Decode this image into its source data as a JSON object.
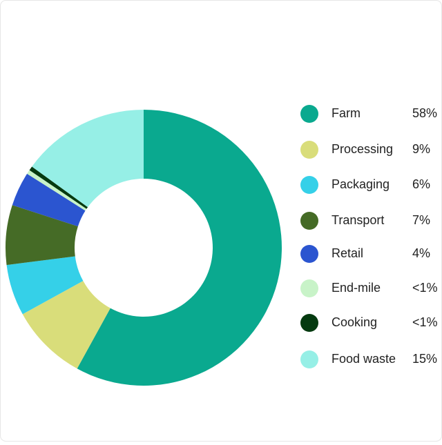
{
  "chart_data": {
    "type": "donut",
    "categories": [
      "Farm",
      "Processing",
      "Packaging",
      "Transport",
      "Retail",
      "End-mile",
      "Cooking",
      "Food waste"
    ],
    "values": [
      58,
      9,
      6,
      7,
      4,
      0.5,
      0.5,
      15
    ],
    "value_labels": [
      "58%",
      "9%",
      "6%",
      "7%",
      "4%",
      "<1%",
      "<1%",
      "15%"
    ],
    "colors": [
      "#0aa98f",
      "#d9dd7a",
      "#35d0e8",
      "#456b26",
      "#2b55d0",
      "#c8f3c8",
      "#053a10",
      "#96efe6"
    ],
    "legend": "right"
  }
}
